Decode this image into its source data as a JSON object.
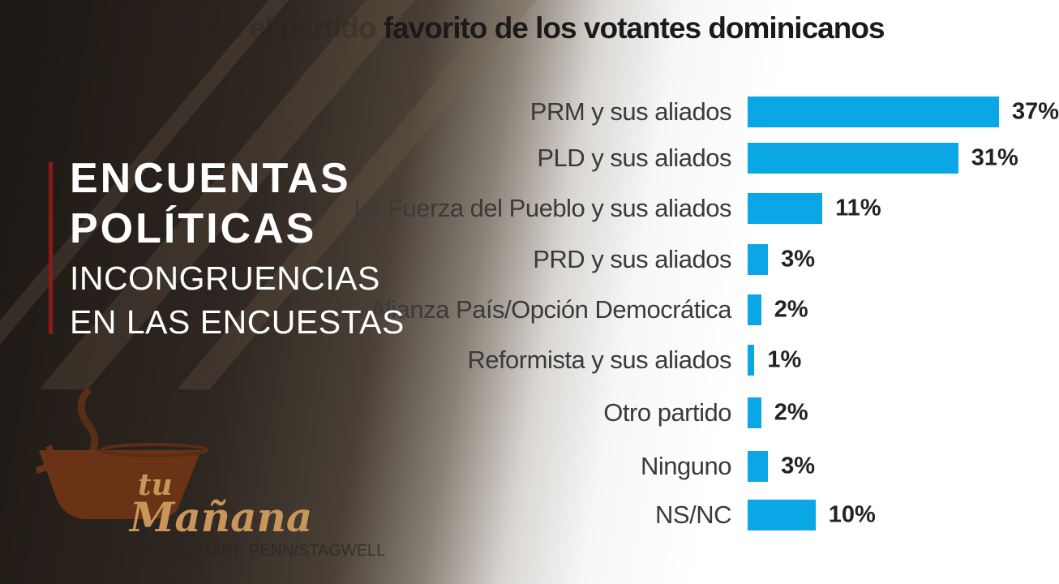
{
  "overlay": {
    "line1": "ENCUENTAS",
    "line2": "POLÍTICAS",
    "line3": "INCONGRUENCIAS",
    "line4": "EN LAS ENCUESTAS"
  },
  "logo": {
    "text1": "tu",
    "text2": "Mañana"
  },
  "colors": {
    "bar": "#0aa6e6",
    "accent": "#8a1a1a",
    "logo": "#c8955a"
  },
  "chart_data": {
    "type": "bar",
    "orientation": "horizontal",
    "title_faint": "PRM es el partido ",
    "title": "favorito de los votantes dominicanos",
    "categories": [
      "PRM y sus aliados",
      "PLD y sus aliados",
      "La Fuerza del Pueblo y sus aliados",
      "PRD y sus aliados",
      "Alianza País/Opción Democrática",
      "Reformista y sus aliados",
      "Otro partido",
      "Ninguno",
      "NS/NC"
    ],
    "values": [
      37,
      31,
      11,
      3,
      2,
      1,
      2,
      3,
      10
    ],
    "labels": [
      "37%",
      "31%",
      "11%",
      "3%",
      "2%",
      "1%",
      "2%",
      "3%",
      "10%"
    ],
    "source": "Fuente: MARK PENN/STAGWELL",
    "xlim": [
      0,
      37
    ]
  }
}
